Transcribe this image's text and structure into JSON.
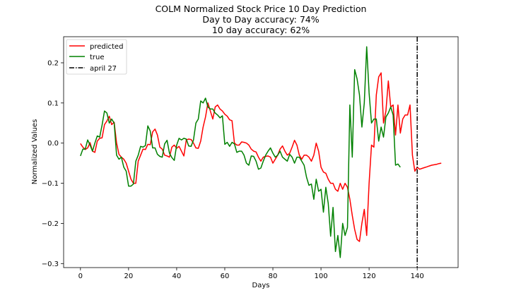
{
  "chart_data": {
    "type": "line",
    "title": "COLM Normalized Stock Price 10 Day Prediction",
    "subtitle_lines": [
      "Day to Day accuracy: 74%",
      "10 day accuracy: 62%"
    ],
    "xlabel": "Days",
    "ylabel": "Normalized Values",
    "xlim": [
      -7,
      157
    ],
    "ylim": [
      -0.31,
      0.265
    ],
    "xticks": [
      0,
      20,
      40,
      60,
      80,
      100,
      120,
      140
    ],
    "yticks": [
      0.2,
      0.1,
      0.0,
      -0.1,
      -0.2,
      -0.3
    ],
    "ytick_labels": [
      "0.2",
      "0.1",
      "0.0",
      "−0.1",
      "−0.2",
      "−0.3"
    ],
    "grid": false,
    "legend_placement": "top-left",
    "vline": {
      "x": 140,
      "label": "april 27",
      "color": "#000000",
      "style": "dashdot"
    },
    "series": [
      {
        "name": "predicted",
        "color": "#ff0000",
        "points": [
          [
            0,
            -0.001
          ],
          [
            1,
            -0.01
          ],
          [
            2,
            -0.016
          ],
          [
            3,
            -0.012
          ],
          [
            4,
            0.001
          ],
          [
            5,
            -0.02
          ],
          [
            6,
            -0.023
          ],
          [
            7,
            0.005
          ],
          [
            8,
            0.012
          ],
          [
            9,
            0.013
          ],
          [
            10,
            0.046
          ],
          [
            11,
            0.055
          ],
          [
            12,
            0.067
          ],
          [
            13,
            0.046
          ],
          [
            14,
            0.052
          ],
          [
            15,
            0.0
          ],
          [
            16,
            -0.028
          ],
          [
            17,
            -0.035
          ],
          [
            18,
            -0.04
          ],
          [
            19,
            -0.05
          ],
          [
            20,
            -0.07
          ],
          [
            21,
            -0.09
          ],
          [
            22,
            -0.1
          ],
          [
            23,
            -0.1
          ],
          [
            24,
            -0.045
          ],
          [
            25,
            -0.03
          ],
          [
            26,
            -0.015
          ],
          [
            27,
            -0.016
          ],
          [
            28,
            -0.003
          ],
          [
            29,
            -0.004
          ],
          [
            30,
            0.028
          ],
          [
            31,
            0.035
          ],
          [
            32,
            0.02
          ],
          [
            33,
            -0.01
          ],
          [
            34,
            -0.015
          ],
          [
            35,
            -0.03
          ],
          [
            36,
            -0.032
          ],
          [
            37,
            -0.035
          ],
          [
            38,
            -0.01
          ],
          [
            39,
            -0.005
          ],
          [
            40,
            -0.013
          ],
          [
            41,
            -0.008
          ],
          [
            42,
            -0.02
          ],
          [
            43,
            -0.032
          ],
          [
            44,
            0.008
          ],
          [
            45,
            0.01
          ],
          [
            46,
            0.009
          ],
          [
            47,
            0.0
          ],
          [
            48,
            -0.012
          ],
          [
            49,
            -0.013
          ],
          [
            50,
            0.005
          ],
          [
            51,
            0.04
          ],
          [
            52,
            0.065
          ],
          [
            53,
            0.1
          ],
          [
            54,
            0.08
          ],
          [
            55,
            0.06
          ],
          [
            56,
            0.09
          ],
          [
            57,
            0.095
          ],
          [
            58,
            0.085
          ],
          [
            59,
            0.08
          ],
          [
            60,
            0.072
          ],
          [
            61,
            0.067
          ],
          [
            62,
            0.058
          ],
          [
            63,
            0.056
          ],
          [
            64,
            0.0
          ],
          [
            65,
            -0.005
          ],
          [
            66,
            -0.005
          ],
          [
            67,
            0.003
          ],
          [
            68,
            0.002
          ],
          [
            69,
            0.0
          ],
          [
            70,
            -0.005
          ],
          [
            71,
            -0.015
          ],
          [
            72,
            -0.02
          ],
          [
            73,
            -0.022
          ],
          [
            74,
            -0.035
          ],
          [
            75,
            -0.045
          ],
          [
            76,
            -0.035
          ],
          [
            77,
            -0.033
          ],
          [
            78,
            -0.032
          ],
          [
            79,
            -0.035
          ],
          [
            80,
            -0.05
          ],
          [
            81,
            -0.04
          ],
          [
            82,
            -0.03
          ],
          [
            83,
            -0.015
          ],
          [
            84,
            -0.007
          ],
          [
            85,
            -0.02
          ],
          [
            86,
            -0.03
          ],
          [
            87,
            -0.025
          ],
          [
            88,
            -0.01
          ],
          [
            89,
            0.007
          ],
          [
            90,
            -0.005
          ],
          [
            91,
            -0.03
          ],
          [
            92,
            -0.04
          ],
          [
            93,
            -0.03
          ],
          [
            94,
            -0.03
          ],
          [
            95,
            -0.035
          ],
          [
            96,
            -0.045
          ],
          [
            97,
            -0.03
          ],
          [
            98,
            0.0
          ],
          [
            99,
            -0.02
          ],
          [
            100,
            -0.06
          ],
          [
            101,
            -0.072
          ],
          [
            102,
            -0.075
          ],
          [
            103,
            -0.09
          ],
          [
            104,
            -0.1
          ],
          [
            105,
            -0.1
          ],
          [
            106,
            -0.115
          ],
          [
            107,
            -0.12
          ],
          [
            108,
            -0.1
          ],
          [
            109,
            -0.115
          ],
          [
            110,
            -0.1
          ],
          [
            111,
            -0.11
          ],
          [
            112,
            -0.14
          ],
          [
            113,
            -0.18
          ],
          [
            114,
            -0.215
          ],
          [
            115,
            -0.24
          ],
          [
            116,
            -0.245
          ],
          [
            117,
            -0.2
          ],
          [
            118,
            -0.165
          ],
          [
            119,
            -0.23
          ],
          [
            120,
            -0.1
          ],
          [
            121,
            -0.005
          ],
          [
            122,
            -0.01
          ],
          [
            123,
            0.12
          ],
          [
            124,
            0.165
          ],
          [
            125,
            0.175
          ],
          [
            126,
            0.05
          ],
          [
            127,
            0.08
          ],
          [
            128,
            0.155
          ],
          [
            129,
            0.09
          ],
          [
            130,
            0.095
          ],
          [
            131,
            0.02
          ],
          [
            132,
            0.095
          ],
          [
            133,
            0.025
          ],
          [
            134,
            0.06
          ],
          [
            135,
            0.07
          ],
          [
            136,
            0.07
          ],
          [
            137,
            0.095
          ],
          [
            138,
            -0.03
          ],
          [
            139,
            -0.07
          ],
          [
            140,
            -0.06
          ],
          [
            141,
            -0.065
          ],
          [
            142,
            -0.063
          ],
          [
            143,
            -0.061
          ],
          [
            144,
            -0.059
          ],
          [
            145,
            -0.057
          ],
          [
            146,
            -0.055
          ],
          [
            147,
            -0.054
          ],
          [
            148,
            -0.053
          ],
          [
            149,
            -0.051
          ],
          [
            150,
            -0.05
          ]
        ]
      },
      {
        "name": "true",
        "color": "#008000",
        "points": [
          [
            0,
            -0.032
          ],
          [
            1,
            -0.015
          ],
          [
            2,
            -0.015
          ],
          [
            3,
            0.008
          ],
          [
            4,
            -0.005
          ],
          [
            5,
            -0.02
          ],
          [
            6,
            0.0
          ],
          [
            7,
            0.018
          ],
          [
            8,
            0.015
          ],
          [
            9,
            0.045
          ],
          [
            10,
            0.08
          ],
          [
            11,
            0.075
          ],
          [
            12,
            0.05
          ],
          [
            13,
            0.06
          ],
          [
            14,
            0.05
          ],
          [
            15,
            -0.03
          ],
          [
            16,
            -0.04
          ],
          [
            17,
            -0.035
          ],
          [
            18,
            -0.06
          ],
          [
            19,
            -0.07
          ],
          [
            20,
            -0.107
          ],
          [
            21,
            -0.107
          ],
          [
            22,
            -0.102
          ],
          [
            23,
            -0.045
          ],
          [
            24,
            -0.03
          ],
          [
            25,
            -0.008
          ],
          [
            26,
            -0.01
          ],
          [
            27,
            -0.006
          ],
          [
            28,
            0.043
          ],
          [
            29,
            0.03
          ],
          [
            30,
            -0.012
          ],
          [
            31,
            -0.012
          ],
          [
            32,
            -0.028
          ],
          [
            33,
            -0.033
          ],
          [
            34,
            -0.035
          ],
          [
            35,
            -0.002
          ],
          [
            36,
            0.007
          ],
          [
            37,
            -0.025
          ],
          [
            38,
            -0.036
          ],
          [
            39,
            -0.043
          ],
          [
            40,
            -0.005
          ],
          [
            41,
            0.012
          ],
          [
            42,
            0.008
          ],
          [
            43,
            0.012
          ],
          [
            44,
            0.01
          ],
          [
            45,
            -0.007
          ],
          [
            46,
            -0.008
          ],
          [
            47,
            0.008
          ],
          [
            48,
            0.05
          ],
          [
            49,
            0.06
          ],
          [
            50,
            0.105
          ],
          [
            51,
            0.1
          ],
          [
            52,
            0.112
          ],
          [
            53,
            0.09
          ],
          [
            54,
            0.085
          ],
          [
            55,
            0.085
          ],
          [
            56,
            0.075
          ],
          [
            57,
            0.07
          ],
          [
            58,
            0.063
          ],
          [
            59,
            0.068
          ],
          [
            60,
            -0.003
          ],
          [
            61,
            0.002
          ],
          [
            62,
            -0.008
          ],
          [
            63,
            0.002
          ],
          [
            64,
            -0.002
          ],
          [
            65,
            -0.023
          ],
          [
            66,
            -0.02
          ],
          [
            67,
            -0.02
          ],
          [
            68,
            -0.03
          ],
          [
            69,
            -0.05
          ],
          [
            70,
            -0.055
          ],
          [
            71,
            -0.032
          ],
          [
            72,
            -0.033
          ],
          [
            73,
            -0.045
          ],
          [
            74,
            -0.065
          ],
          [
            75,
            -0.062
          ],
          [
            76,
            -0.045
          ],
          [
            77,
            -0.03
          ],
          [
            78,
            -0.02
          ],
          [
            79,
            -0.012
          ],
          [
            80,
            -0.025
          ],
          [
            81,
            -0.035
          ],
          [
            82,
            -0.03
          ],
          [
            83,
            -0.02
          ],
          [
            84,
            -0.035
          ],
          [
            85,
            -0.04
          ],
          [
            86,
            -0.045
          ],
          [
            87,
            -0.028
          ],
          [
            88,
            -0.035
          ],
          [
            89,
            -0.05
          ],
          [
            90,
            -0.035
          ],
          [
            91,
            -0.035
          ],
          [
            92,
            -0.045
          ],
          [
            93,
            -0.055
          ],
          [
            94,
            -0.085
          ],
          [
            95,
            -0.105
          ],
          [
            96,
            -0.102
          ],
          [
            97,
            -0.14
          ],
          [
            98,
            -0.09
          ],
          [
            99,
            -0.12
          ],
          [
            100,
            -0.115
          ],
          [
            101,
            -0.172
          ],
          [
            102,
            -0.11
          ],
          [
            103,
            -0.15
          ],
          [
            104,
            -0.232
          ],
          [
            105,
            -0.16
          ],
          [
            106,
            -0.27
          ],
          [
            107,
            -0.23
          ],
          [
            108,
            -0.285
          ],
          [
            109,
            -0.2
          ],
          [
            110,
            -0.23
          ],
          [
            111,
            -0.21
          ],
          [
            112,
            0.095
          ],
          [
            113,
            -0.035
          ],
          [
            114,
            0.183
          ],
          [
            115,
            0.16
          ],
          [
            116,
            0.12
          ],
          [
            117,
            0.04
          ],
          [
            118,
            0.1
          ],
          [
            119,
            0.24
          ],
          [
            120,
            0.125
          ],
          [
            121,
            0.05
          ],
          [
            122,
            0.06
          ],
          [
            123,
            0.06
          ],
          [
            124,
            0.005
          ],
          [
            125,
            0.04
          ],
          [
            126,
            0.015
          ],
          [
            127,
            0.065
          ],
          [
            128,
            0.075
          ],
          [
            129,
            0.09
          ],
          [
            130,
            0.07
          ],
          [
            131,
            -0.055
          ],
          [
            132,
            -0.052
          ],
          [
            133,
            -0.06
          ]
        ]
      }
    ]
  }
}
